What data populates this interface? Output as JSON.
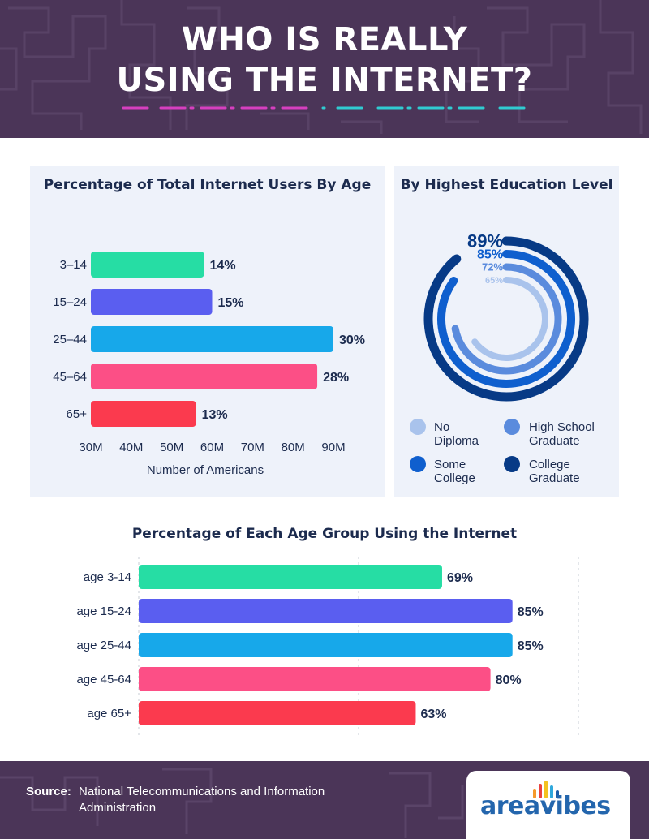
{
  "header": {
    "title_line1": "WHO IS REALLY",
    "title_line2": "USING THE INTERNET?",
    "dash_colors": [
      "#d63fbf",
      "#30cbd1"
    ]
  },
  "colors": {
    "header_bg": "#4b3558",
    "panel_bg": "#eef2fa",
    "text_dark": "#1c2b4e",
    "green": "#26dda4",
    "violet": "#5a5ef0",
    "sky": "#17a8ea",
    "pink": "#fc4f86",
    "red": "#fb3a4e"
  },
  "chart_data": [
    {
      "type": "bar",
      "orientation": "horizontal",
      "title": "Percentage of Total Internet Users By Age",
      "xlabel": "Number of Americans",
      "xlim": [
        30,
        90
      ],
      "x_ticks": [
        "30M",
        "40M",
        "50M",
        "60M",
        "70M",
        "80M",
        "90M"
      ],
      "categories": [
        "3–14",
        "15–24",
        "25–44",
        "45–64",
        "65+"
      ],
      "values": [
        14,
        15,
        30,
        28,
        13
      ],
      "data_labels": [
        "14%",
        "15%",
        "30%",
        "28%",
        "13%"
      ],
      "bar_values_millions": [
        58,
        60,
        90,
        86,
        56
      ],
      "colors": [
        "#26dda4",
        "#5a5ef0",
        "#17a8ea",
        "#fc4f86",
        "#fb3a4e"
      ]
    },
    {
      "type": "radial_bar",
      "title": "By Highest Education Level",
      "categories": [
        "College Graduate",
        "Some College",
        "High School Graduate",
        "No Diploma"
      ],
      "values": [
        89,
        85,
        72,
        65
      ],
      "data_labels": [
        "89%",
        "85%",
        "72%",
        "65%"
      ],
      "colors": [
        "#073a86",
        "#0f5fce",
        "#5a8bdd",
        "#a9c3ec"
      ],
      "legend": [
        {
          "label": "No Diploma",
          "color": "#a9c3ec"
        },
        {
          "label": "High School Graduate",
          "color": "#5a8bdd"
        },
        {
          "label": "Some College",
          "color": "#0f5fce"
        },
        {
          "label": "College Graduate",
          "color": "#073a86"
        }
      ],
      "legend_position": "bottom"
    },
    {
      "type": "bar",
      "orientation": "horizontal",
      "title": "Percentage of Each Age Group Using the Internet",
      "xlim": [
        0,
        100
      ],
      "categories": [
        "age 3-14",
        "age 15-24",
        "age 25-44",
        "age 45-64",
        "age 65+"
      ],
      "values": [
        69,
        85,
        85,
        80,
        63
      ],
      "data_labels": [
        "69%",
        "85%",
        "85%",
        "80%",
        "63%"
      ],
      "colors": [
        "#26dda4",
        "#5a5ef0",
        "#17a8ea",
        "#fc4f86",
        "#fb3a4e"
      ],
      "grid": true
    }
  ],
  "footer": {
    "source_label": "Source:",
    "source_text": "National Telecommunications and Information Administration",
    "logo_text": "areavibes",
    "logo_bar_colors": [
      "#f59a2b",
      "#e9423f",
      "#f4c21f",
      "#2fa8dc",
      "#1c5ca8"
    ]
  }
}
